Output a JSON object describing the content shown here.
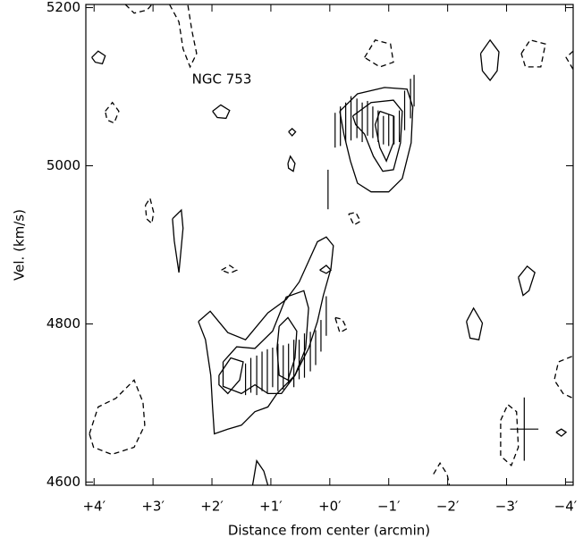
{
  "chart_data": {
    "type": "contour",
    "annotation": "NGC 753",
    "xlabel": "Distance from center (arcmin)",
    "ylabel": "Vel. (km/s)",
    "xlim": [
      4.14,
      -4.13
    ],
    "ylim": [
      4596,
      5204
    ],
    "xticks": [
      {
        "value": 4,
        "label": "+4′"
      },
      {
        "value": 3,
        "label": "+3′"
      },
      {
        "value": 2,
        "label": "+2′"
      },
      {
        "value": 1,
        "label": "+1′"
      },
      {
        "value": 0,
        "label": "+0′"
      },
      {
        "value": -1,
        "label": "−1′"
      },
      {
        "value": -2,
        "label": "−2′"
      },
      {
        "value": -3,
        "label": "−3′"
      },
      {
        "value": -4,
        "label": "−4′"
      }
    ],
    "yticks": [
      4600,
      4800,
      5000,
      5200
    ],
    "points": {
      "x": [
        1.43,
        1.34,
        1.24,
        1.15,
        1.06,
        0.97,
        0.88,
        0.79,
        0.7,
        0.61,
        0.52,
        0.43,
        0.33,
        0.24,
        0.15,
        0.06,
        0.03,
        -0.09,
        -0.18,
        -0.27,
        -0.36,
        -0.46,
        -0.55,
        -0.64,
        -0.73,
        -0.82,
        -0.91,
        -1.0,
        -1.09,
        -1.18,
        -1.27,
        -1.37,
        -1.43
      ],
      "y": [
        4730,
        4735,
        4735,
        4740,
        4740,
        4745,
        4745,
        4745,
        4750,
        4750,
        4755,
        4760,
        4765,
        4770,
        4785,
        4810,
        4970,
        5045,
        5050,
        5055,
        5060,
        5060,
        5055,
        5060,
        5055,
        5050,
        5045,
        5045,
        5045,
        5050,
        5070,
        5085,
        5095
      ],
      "yerr": [
        20,
        22,
        25,
        25,
        28,
        25,
        30,
        28,
        25,
        30,
        25,
        28,
        25,
        22,
        20,
        25,
        25,
        22,
        25,
        25,
        28,
        25,
        25,
        22,
        20,
        20,
        18,
        20,
        18,
        20,
        25,
        25,
        20
      ]
    },
    "beam": {
      "x": -3.3,
      "y": 4667,
      "xerr": 0.24,
      "yerr": 40
    },
    "contours": [
      {
        "style": "solid",
        "x": [
          2.23,
          2.03,
          1.73,
          1.43,
          1.05,
          0.74,
          0.52,
          0.21,
          0.06,
          -0.06,
          -0.02,
          0.11,
          0.21,
          0.36,
          0.59,
          0.895,
          1.05,
          1.27,
          1.5,
          1.73,
          1.96,
          1.99,
          2.02,
          2.11,
          2.23
        ],
        "y": [
          4803,
          4816,
          4789,
          4780,
          4814,
          4831,
          4853,
          4904,
          4910,
          4899,
          4870,
          4836,
          4803,
          4769,
          4735,
          4712,
          4695,
          4689,
          4672,
          4667,
          4661,
          4695,
          4735,
          4780,
          4803
        ]
      },
      {
        "style": "solid",
        "x": [
          1.81,
          1.58,
          1.27,
          0.97,
          0.74,
          0.44,
          0.36,
          0.41,
          0.59,
          0.82,
          1.05,
          1.27,
          1.5,
          1.81,
          1.81
        ],
        "y": [
          4752,
          4771,
          4769,
          4791,
          4834,
          4842,
          4820,
          4769,
          4735,
          4712,
          4712,
          4723,
          4712,
          4721,
          4752
        ]
      },
      {
        "style": "solid",
        "x": [
          1.88,
          1.68,
          1.47,
          1.53,
          1.73,
          1.88,
          1.88
        ],
        "y": [
          4735,
          4757,
          4752,
          4729,
          4712,
          4723,
          4735
        ]
      },
      {
        "style": "solid",
        "x": [
          0.86,
          0.71,
          0.56,
          0.59,
          0.71,
          0.86,
          0.895,
          0.86
        ],
        "y": [
          4797,
          4808,
          4791,
          4757,
          4729,
          4735,
          4769,
          4797
        ]
      },
      {
        "style": "solid",
        "x": [
          -0.17,
          -0.47,
          -0.93,
          -1.31,
          -1.41,
          -1.38,
          -1.23,
          -1.0,
          -0.7,
          -0.47,
          -0.35,
          -0.24,
          -0.17
        ],
        "y": [
          5069,
          5091,
          5099,
          5097,
          5074,
          5029,
          4984,
          4967,
          4967,
          4978,
          5006,
          5040,
          5069
        ]
      },
      {
        "style": "solid",
        "x": [
          -0.39,
          -0.7,
          -1.08,
          -1.23,
          -1.2,
          -1.08,
          -0.9,
          -0.74,
          -0.59,
          -0.44,
          -0.39
        ],
        "y": [
          5063,
          5080,
          5083,
          5069,
          5029,
          4995,
          4993,
          5012,
          5040,
          5052,
          5063
        ]
      },
      {
        "style": "solid",
        "x": [
          -0.85,
          -1.08,
          -1.08,
          -0.96,
          -0.85,
          -0.77,
          -0.85
        ],
        "y": [
          5069,
          5063,
          5029,
          5006,
          5023,
          5052,
          5069
        ]
      },
      {
        "style": "solid",
        "x": [
          4.04,
          3.93,
          3.81,
          3.86,
          3.98,
          4.04
        ],
        "y": [
          5137,
          5145,
          5139,
          5129,
          5131,
          5137
        ]
      },
      {
        "style": "solid",
        "x": [
          1.99,
          1.85,
          1.7,
          1.76,
          1.91,
          1.99
        ],
        "y": [
          5069,
          5077,
          5070,
          5060,
          5061,
          5069
        ]
      },
      {
        "style": "solid",
        "x": [
          -2.56,
          -2.72,
          -2.87,
          -2.84,
          -2.72,
          -2.59,
          -2.56
        ],
        "y": [
          5142,
          5159,
          5144,
          5120,
          5108,
          5120,
          5142
        ]
      },
      {
        "style": "solid",
        "x": [
          2.67,
          2.52,
          2.49,
          2.56,
          2.64,
          2.67
        ],
        "y": [
          4933,
          4944,
          4921,
          4865,
          4905,
          4933
        ]
      },
      {
        "style": "solid",
        "x": [
          -2.32,
          -2.44,
          -2.59,
          -2.53,
          -2.38,
          -2.32
        ],
        "y": [
          4803,
          4820,
          4801,
          4780,
          4782,
          4803
        ]
      },
      {
        "style": "solid",
        "x": [
          -3.2,
          -3.35,
          -3.48,
          -3.38,
          -3.28,
          -3.2
        ],
        "y": [
          4859,
          4873,
          4865,
          4842,
          4836,
          4859
        ]
      },
      {
        "style": "solid",
        "x": [
          0.71,
          0.67,
          0.59,
          0.62,
          0.7,
          0.71
        ],
        "y": [
          5003,
          5012,
          5003,
          4993,
          4997,
          5003
        ]
      },
      {
        "style": "solid",
        "x": [
          0.7,
          0.64,
          0.58,
          0.64,
          0.7
        ],
        "y": [
          5043,
          5047,
          5043,
          5038,
          5043
        ]
      },
      {
        "style": "solid",
        "x": [
          0.17,
          0.06,
          -0.02,
          0.06,
          0.17
        ],
        "y": [
          4868,
          4874,
          4868,
          4864,
          4868
        ]
      },
      {
        "style": "solid",
        "x": [
          1.31,
          1.24,
          1.12,
          1.05
        ],
        "y": [
          4596,
          4627,
          4614,
          4596
        ]
      },
      {
        "style": "solid",
        "x": [
          -3.84,
          -3.93,
          -4.01,
          -3.93,
          -3.84
        ],
        "y": [
          4663,
          4667,
          4663,
          4658,
          4663
        ]
      },
      {
        "style": "dashed",
        "x": [
          2.72,
          2.56,
          2.49,
          2.37,
          2.26,
          2.34,
          2.41
        ],
        "y": [
          5204,
          5182,
          5148,
          5125,
          5142,
          5171,
          5204
        ]
      },
      {
        "style": "dashed",
        "x": [
          3.47,
          3.32,
          3.1,
          3.02
        ],
        "y": [
          5204,
          5193,
          5197,
          5204
        ]
      },
      {
        "style": "dashed",
        "x": [
          3.81,
          3.69,
          3.58,
          3.66,
          3.78,
          3.81
        ],
        "y": [
          5069,
          5080,
          5069,
          5054,
          5058,
          5069
        ]
      },
      {
        "style": "dashed",
        "x": [
          3.13,
          3.05,
          2.99,
          3.02,
          3.11,
          3.13
        ],
        "y": [
          4950,
          4959,
          4941,
          4927,
          4933,
          4950
        ]
      },
      {
        "style": "dashed",
        "x": [
          -0.59,
          -0.77,
          -1.03,
          -1.08,
          -0.85,
          -0.59
        ],
        "y": [
          5137,
          5159,
          5154,
          5131,
          5125,
          5137
        ]
      },
      {
        "style": "dashed",
        "x": [
          -3.25,
          -3.4,
          -3.66,
          -3.58,
          -3.32,
          -3.25
        ],
        "y": [
          5142,
          5159,
          5154,
          5125,
          5125,
          5142
        ]
      },
      {
        "style": "dashed",
        "x": [
          -4.13,
          -4.01,
          -4.13
        ],
        "y": [
          5145,
          5137,
          5122
        ]
      },
      {
        "style": "dashed",
        "x": [
          4.08,
          3.93,
          3.63,
          3.32,
          3.17,
          3.14,
          3.32,
          3.7,
          4.01,
          4.08
        ],
        "y": [
          4661,
          4695,
          4706,
          4729,
          4701,
          4672,
          4644,
          4635,
          4644,
          4661
        ]
      },
      {
        "style": "dashed",
        "x": [
          -2.9,
          -3.02,
          -3.17,
          -3.2,
          -3.08,
          -2.9,
          -2.9
        ],
        "y": [
          4678,
          4698,
          4689,
          4644,
          4621,
          4633,
          4678
        ]
      },
      {
        "style": "dashed",
        "x": [
          -4.11,
          -3.88,
          -3.81,
          -3.96,
          -4.13
        ],
        "y": [
          4759,
          4752,
          4729,
          4712,
          4706
        ]
      },
      {
        "style": "dashed",
        "x": [
          -0.09,
          -0.21,
          -0.29,
          -0.17,
          -0.09
        ],
        "y": [
          4808,
          4806,
          4794,
          4789,
          4808
        ]
      },
      {
        "style": "dashed",
        "x": [
          -0.32,
          -0.44,
          -0.52,
          -0.41,
          -0.32
        ],
        "y": [
          4939,
          4941,
          4930,
          4925,
          4939
        ]
      },
      {
        "style": "dashed",
        "x": [
          1.84,
          1.7,
          1.58,
          1.7,
          1.84
        ],
        "y": [
          4868,
          4874,
          4868,
          4864,
          4868
        ]
      },
      {
        "style": "dashed",
        "x": [
          -1.76,
          -1.87,
          -1.99,
          -2.03
        ],
        "y": [
          4610,
          4624,
          4610,
          4596
        ]
      }
    ]
  }
}
